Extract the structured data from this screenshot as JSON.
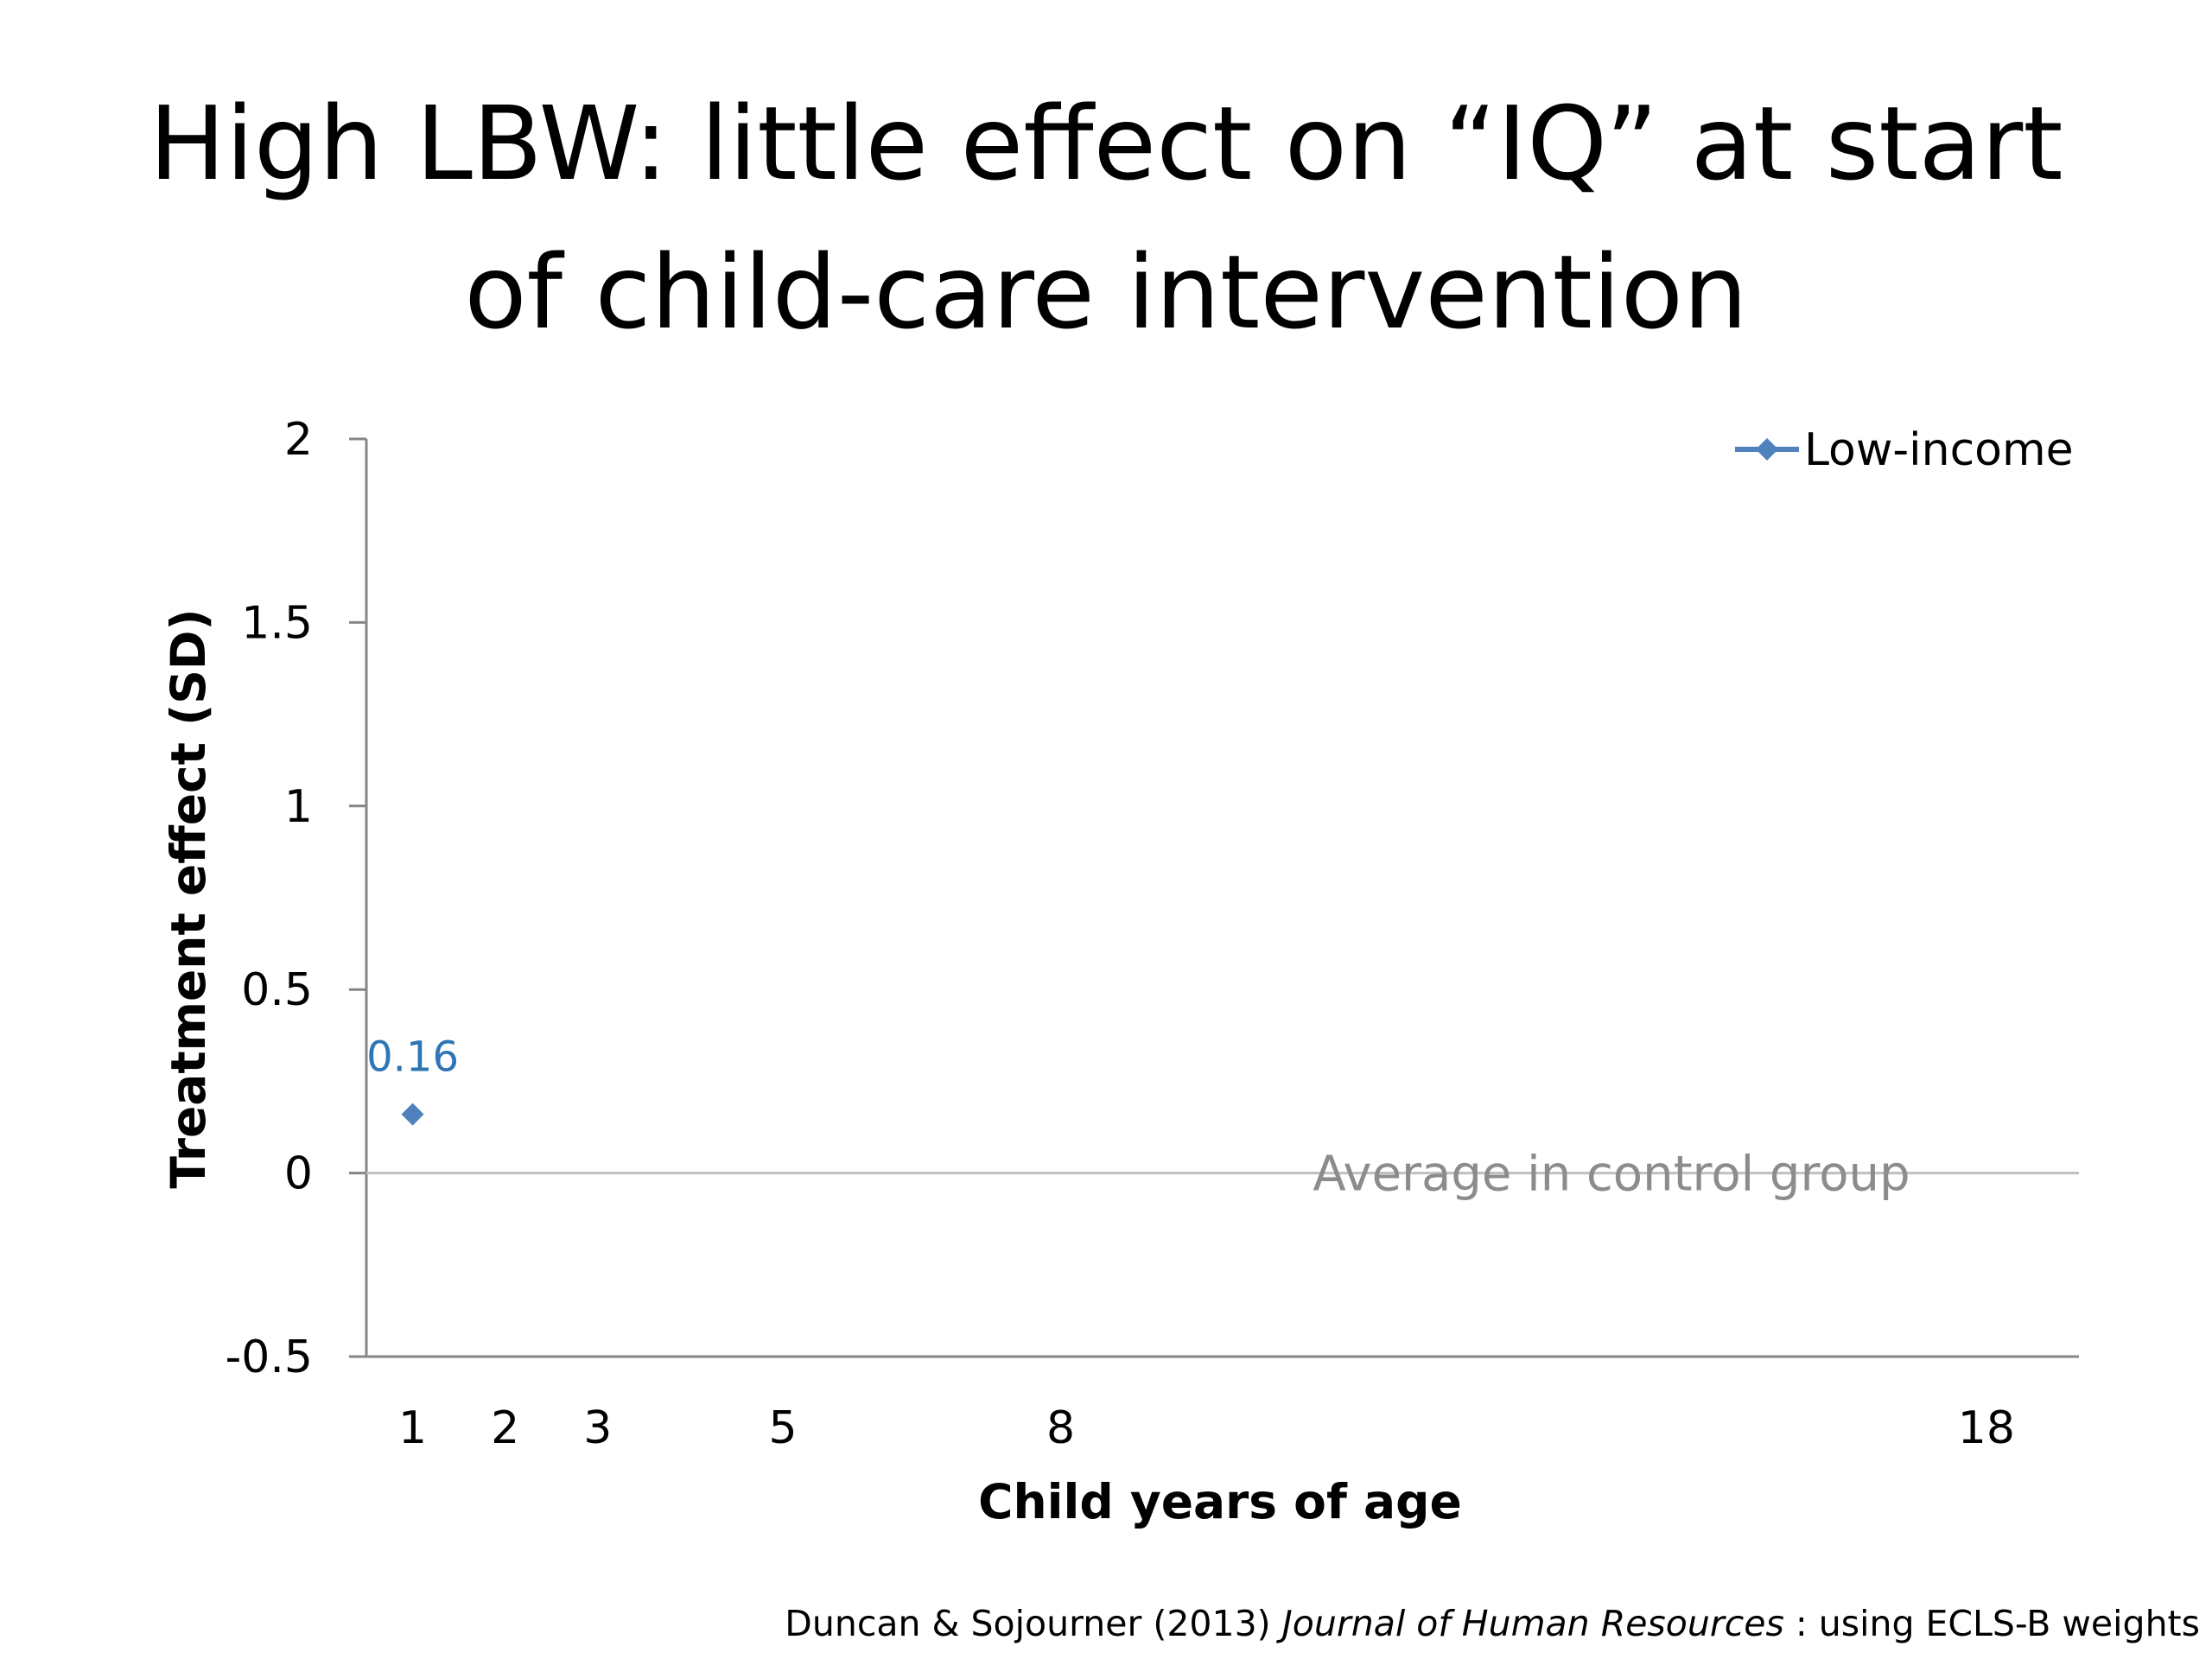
{
  "slide": {
    "title_line1": "High LBW:  little effect on “IQ” at start",
    "title_line2": "of child-care intervention",
    "source_prefix": "Duncan & Sojourner (2013) ",
    "source_journal": "Journal of Human Resources",
    "source_suffix": " : using ECLS-B weights"
  },
  "chart_data": {
    "type": "scatter",
    "xlabel": "Child years of age",
    "ylabel": "Treatment effect (SD)",
    "x_ticks": [
      1,
      2,
      3,
      5,
      8,
      18
    ],
    "xlim": [
      0.5,
      19
    ],
    "ylim": [
      -0.5,
      2
    ],
    "y_ticks": [
      -0.5,
      0,
      0.5,
      1,
      1.5,
      2
    ],
    "y_tick_labels": [
      "-0.5",
      "0",
      "0.5",
      "1",
      "1.5",
      "2"
    ],
    "grid": false,
    "legend": "top-right",
    "series": [
      {
        "name": "Low-income",
        "color": "#4F81BD",
        "marker": "diamond",
        "points": [
          {
            "x": 1,
            "y": 0.16,
            "label": "0.16"
          }
        ]
      }
    ],
    "reference_line": {
      "y": 0,
      "label": "Average in control group",
      "color": "#bfbfbf"
    }
  }
}
